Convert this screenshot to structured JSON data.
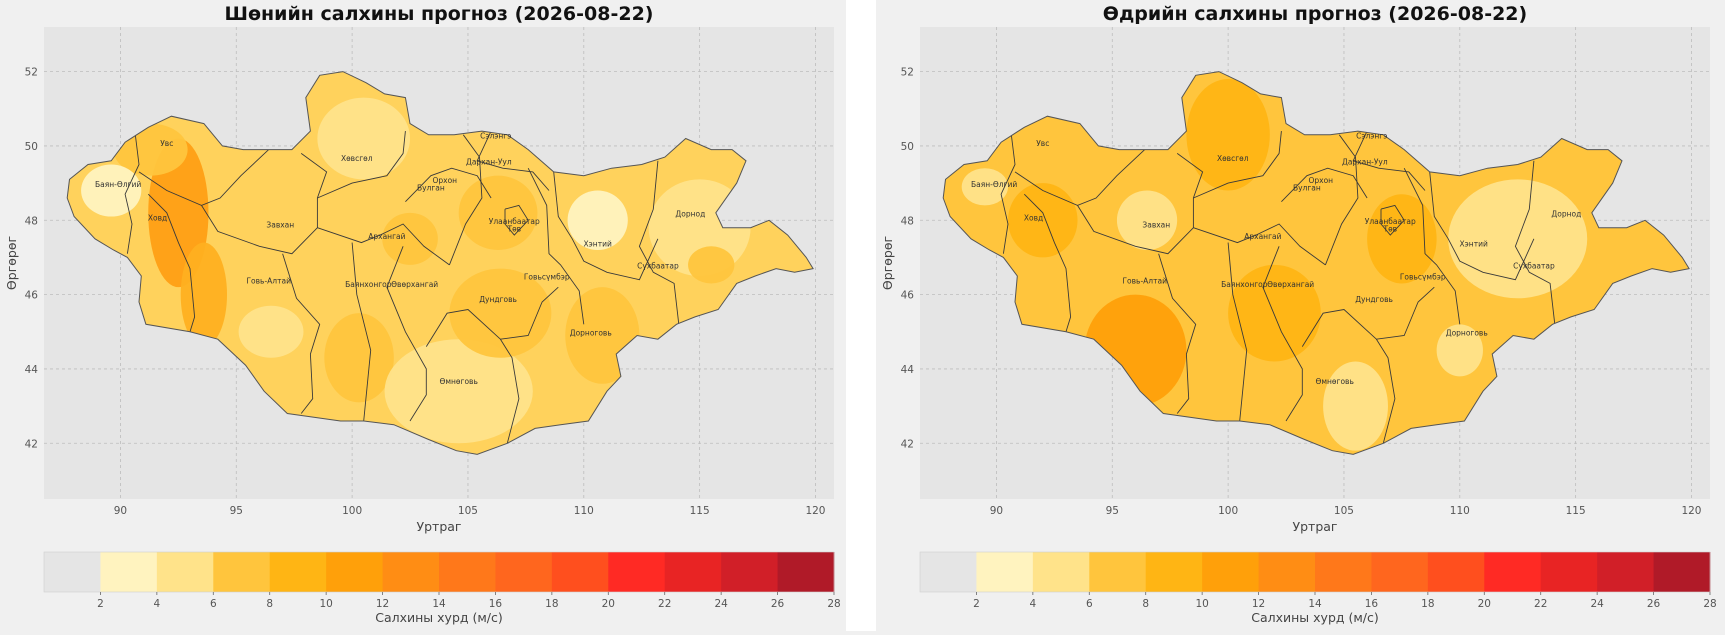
{
  "chart_data": [
    {
      "type": "heatmap",
      "title": "Шөнийн салхины прогноз (2026-08-22)",
      "xlabel": "Уртраг",
      "ylabel": "Өргөрөг",
      "xlim": [
        86.7,
        120.8
      ],
      "ylim": [
        40.5,
        53.2
      ],
      "xticks": [
        90,
        95,
        100,
        105,
        110,
        115,
        120
      ],
      "yticks": [
        42,
        44,
        46,
        48,
        50,
        52
      ],
      "grid": true,
      "regions": [
        {
          "name": "Баян-Өлгий",
          "lon": 89.9,
          "lat": 48.9
        },
        {
          "name": "Увс",
          "lon": 92.0,
          "lat": 50.0
        },
        {
          "name": "Ховд",
          "lon": 91.6,
          "lat": 48.0
        },
        {
          "name": "Завхан",
          "lon": 96.9,
          "lat": 47.8
        },
        {
          "name": "Говь-Алтай",
          "lon": 96.4,
          "lat": 46.3
        },
        {
          "name": "Хөвсгөл",
          "lon": 100.2,
          "lat": 49.6
        },
        {
          "name": "Архангай",
          "lon": 101.5,
          "lat": 47.5
        },
        {
          "name": "Баянхонгор",
          "lon": 100.7,
          "lat": 46.2
        },
        {
          "name": "Өвөрхангай",
          "lon": 102.7,
          "lat": 46.2
        },
        {
          "name": "Өмнөговь",
          "lon": 104.6,
          "lat": 43.6
        },
        {
          "name": "Булган",
          "lon": 103.4,
          "lat": 48.8
        },
        {
          "name": "Орхон",
          "lon": 104.0,
          "lat": 49.0
        },
        {
          "name": "Сэлэнгэ",
          "lon": 106.2,
          "lat": 50.2
        },
        {
          "name": "Дархан-Уул",
          "lon": 105.9,
          "lat": 49.5
        },
        {
          "name": "Улаанбаатар",
          "lon": 107.0,
          "lat": 47.9
        },
        {
          "name": "Төв",
          "lon": 107.0,
          "lat": 47.7
        },
        {
          "name": "Хэнтий",
          "lon": 110.6,
          "lat": 47.3
        },
        {
          "name": "Дорнод",
          "lon": 114.6,
          "lat": 48.1
        },
        {
          "name": "Сүхбаатар",
          "lon": 113.2,
          "lat": 46.7
        },
        {
          "name": "Дорноговь",
          "lon": 110.3,
          "lat": 44.9
        },
        {
          "name": "Дундговь",
          "lon": 106.3,
          "lat": 45.8
        },
        {
          "name": "Говьсүмбэр",
          "lon": 108.4,
          "lat": 46.4
        }
      ],
      "colorbar": {
        "label": "Салхины хурд (м/с)",
        "ticks": [
          2,
          4,
          6,
          8,
          10,
          12,
          14,
          16,
          18,
          20,
          22,
          24,
          26,
          28
        ],
        "colors": [
          "#e5e5e5",
          "#fff3bf",
          "#ffe38a",
          "#ffc53d",
          "#ffb514",
          "#ffa00a",
          "#ff8d14",
          "#ff781a",
          "#ff661e",
          "#ff4f1e",
          "#ff2a24",
          "#e82424",
          "#d11f28",
          "#b01a28"
        ]
      },
      "fill_color": "#ffd25c",
      "zones": [
        {
          "lon": 92.5,
          "lat": 48.2,
          "rx": 1.3,
          "ry": 2.0,
          "color": "#ff9f14"
        },
        {
          "lon": 93.6,
          "lat": 46.0,
          "rx": 1.0,
          "ry": 1.4,
          "color": "#ffb020"
        },
        {
          "lon": 91.3,
          "lat": 49.9,
          "rx": 1.6,
          "ry": 0.7,
          "color": "#ffc53d"
        },
        {
          "lon": 89.6,
          "lat": 48.8,
          "rx": 1.3,
          "ry": 0.7,
          "color": "#fff3bf"
        },
        {
          "lon": 96.5,
          "lat": 45.0,
          "rx": 1.4,
          "ry": 0.7,
          "color": "#ffe38a"
        },
        {
          "lon": 100.5,
          "lat": 50.2,
          "rx": 2.0,
          "ry": 1.1,
          "color": "#ffe38a"
        },
        {
          "lon": 100.3,
          "lat": 44.3,
          "rx": 1.5,
          "ry": 1.2,
          "color": "#ffc53d"
        },
        {
          "lon": 104.6,
          "lat": 43.4,
          "rx": 3.2,
          "ry": 1.4,
          "color": "#ffe38a"
        },
        {
          "lon": 106.4,
          "lat": 45.5,
          "rx": 2.2,
          "ry": 1.2,
          "color": "#ffc53d"
        },
        {
          "lon": 106.3,
          "lat": 48.2,
          "rx": 1.7,
          "ry": 1.0,
          "color": "#ffc53d"
        },
        {
          "lon": 110.6,
          "lat": 48.0,
          "rx": 1.3,
          "ry": 0.8,
          "color": "#fff3bf"
        },
        {
          "lon": 115.0,
          "lat": 47.8,
          "rx": 2.2,
          "ry": 1.3,
          "color": "#ffe38a"
        },
        {
          "lon": 115.5,
          "lat": 46.8,
          "rx": 1.0,
          "ry": 0.5,
          "color": "#ffc53d"
        },
        {
          "lon": 110.8,
          "lat": 44.9,
          "rx": 1.6,
          "ry": 1.3,
          "color": "#ffc53d"
        },
        {
          "lon": 102.5,
          "lat": 47.5,
          "rx": 1.2,
          "ry": 0.7,
          "color": "#ffc53d"
        }
      ]
    },
    {
      "type": "heatmap",
      "title": "Өдрийн салхины прогноз (2026-08-22)",
      "xlabel": "Уртраг",
      "ylabel": "Өргөрөг",
      "xlim": [
        86.7,
        120.8
      ],
      "ylim": [
        40.5,
        53.2
      ],
      "xticks": [
        90,
        95,
        100,
        105,
        110,
        115,
        120
      ],
      "yticks": [
        42,
        44,
        46,
        48,
        50,
        52
      ],
      "grid": true,
      "regions": [
        {
          "name": "Баян-Өлгий",
          "lon": 89.9,
          "lat": 48.9
        },
        {
          "name": "Увс",
          "lon": 92.0,
          "lat": 50.0
        },
        {
          "name": "Ховд",
          "lon": 91.6,
          "lat": 48.0
        },
        {
          "name": "Завхан",
          "lon": 96.9,
          "lat": 47.8
        },
        {
          "name": "Говь-Алтай",
          "lon": 96.4,
          "lat": 46.3
        },
        {
          "name": "Хөвсгөл",
          "lon": 100.2,
          "lat": 49.6
        },
        {
          "name": "Архангай",
          "lon": 101.5,
          "lat": 47.5
        },
        {
          "name": "Баянхонгор",
          "lon": 100.7,
          "lat": 46.2
        },
        {
          "name": "Өвөрхангай",
          "lon": 102.7,
          "lat": 46.2
        },
        {
          "name": "Өмнөговь",
          "lon": 104.6,
          "lat": 43.6
        },
        {
          "name": "Булган",
          "lon": 103.4,
          "lat": 48.8
        },
        {
          "name": "Орхон",
          "lon": 104.0,
          "lat": 49.0
        },
        {
          "name": "Сэлэнгэ",
          "lon": 106.2,
          "lat": 50.2
        },
        {
          "name": "Дархан-Уул",
          "lon": 105.9,
          "lat": 49.5
        },
        {
          "name": "Улаанбаатар",
          "lon": 107.0,
          "lat": 47.9
        },
        {
          "name": "Төв",
          "lon": 107.0,
          "lat": 47.7
        },
        {
          "name": "Хэнтий",
          "lon": 110.6,
          "lat": 47.3
        },
        {
          "name": "Дорнод",
          "lon": 114.6,
          "lat": 48.1
        },
        {
          "name": "Сүхбаатар",
          "lon": 113.2,
          "lat": 46.7
        },
        {
          "name": "Дорноговь",
          "lon": 110.3,
          "lat": 44.9
        },
        {
          "name": "Дундговь",
          "lon": 106.3,
          "lat": 45.8
        },
        {
          "name": "Говьсүмбэр",
          "lon": 108.4,
          "lat": 46.4
        }
      ],
      "colorbar": {
        "label": "Салхины хурд (м/с)",
        "ticks": [
          2,
          4,
          6,
          8,
          10,
          12,
          14,
          16,
          18,
          20,
          22,
          24,
          26,
          28
        ],
        "colors": [
          "#e5e5e5",
          "#fff3bf",
          "#ffe38a",
          "#ffc53d",
          "#ffb514",
          "#ffa00a",
          "#ff8d14",
          "#ff781a",
          "#ff661e",
          "#ff4f1e",
          "#ff2a24",
          "#e82424",
          "#d11f28",
          "#b01a28"
        ]
      },
      "fill_color": "#ffc53d",
      "zones": [
        {
          "lon": 100.0,
          "lat": 50.3,
          "rx": 1.8,
          "ry": 1.5,
          "color": "#ffb514"
        },
        {
          "lon": 96.0,
          "lat": 44.5,
          "rx": 2.2,
          "ry": 1.5,
          "color": "#ffa00a"
        },
        {
          "lon": 92.0,
          "lat": 48.0,
          "rx": 1.5,
          "ry": 1.0,
          "color": "#ffb514"
        },
        {
          "lon": 102.0,
          "lat": 45.5,
          "rx": 2.0,
          "ry": 1.3,
          "color": "#ffb514"
        },
        {
          "lon": 107.5,
          "lat": 47.5,
          "rx": 1.5,
          "ry": 1.2,
          "color": "#ffb514"
        },
        {
          "lon": 112.5,
          "lat": 47.5,
          "rx": 3.0,
          "ry": 1.6,
          "color": "#ffe38a"
        },
        {
          "lon": 110.0,
          "lat": 44.5,
          "rx": 1.0,
          "ry": 0.7,
          "color": "#ffe38a"
        },
        {
          "lon": 105.5,
          "lat": 43.0,
          "rx": 1.4,
          "ry": 1.2,
          "color": "#ffe38a"
        },
        {
          "lon": 96.5,
          "lat": 48.0,
          "rx": 1.3,
          "ry": 0.8,
          "color": "#ffe38a"
        },
        {
          "lon": 89.5,
          "lat": 48.9,
          "rx": 1.0,
          "ry": 0.5,
          "color": "#ffe38a"
        }
      ]
    }
  ]
}
